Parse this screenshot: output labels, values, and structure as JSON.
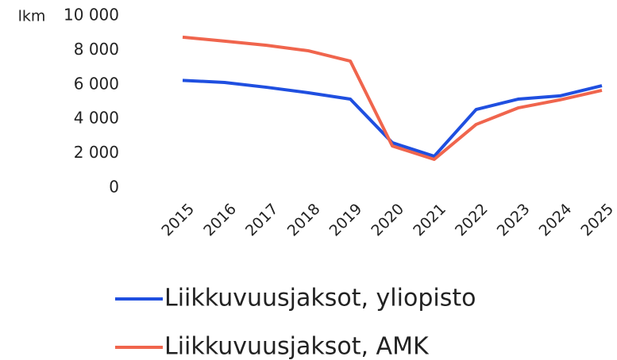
{
  "chart_data": {
    "type": "line",
    "y_label": "lkm",
    "categories": [
      "2015",
      "2016",
      "2017",
      "2018",
      "2019",
      "2020",
      "2021",
      "2022",
      "2023",
      "2024",
      "2025"
    ],
    "series": [
      {
        "name": "Liikkuvuusjaksot, yliopisto",
        "color": "#1f4fe0",
        "values": [
          6250,
          6130,
          5850,
          5530,
          5160,
          2630,
          1840,
          4560,
          5160,
          5350,
          5940
        ]
      },
      {
        "name": "Liikkuvuusjaksot, AMK",
        "color": "#f0654d",
        "values": [
          8760,
          8530,
          8290,
          7970,
          7370,
          2440,
          1660,
          3690,
          4650,
          5120,
          5670
        ]
      }
    ],
    "ylim": [
      0,
      10000
    ],
    "yticks": [
      0,
      {
        "value": 2000,
        "label": "2 000"
      },
      {
        "value": 4000,
        "label": "4 000"
      },
      {
        "value": 6000,
        "label": "6 000"
      },
      {
        "value": 8000,
        "label": "8 000"
      },
      {
        "value": 10000,
        "label": "10 000"
      }
    ],
    "legend": "bottom"
  }
}
